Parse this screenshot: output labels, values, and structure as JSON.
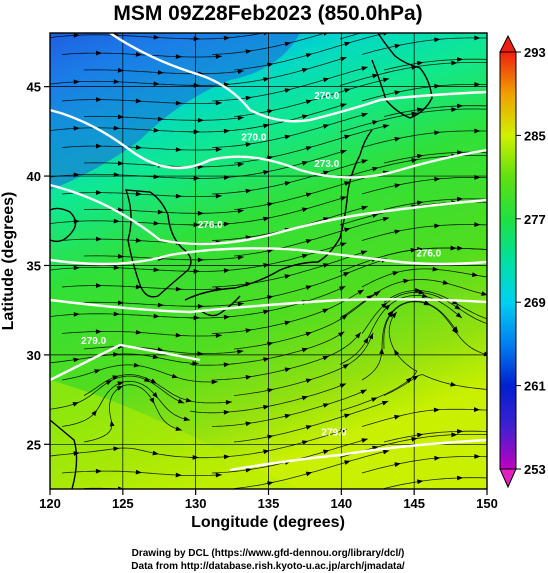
{
  "chart_data": {
    "type": "heatmap",
    "title": "MSM 09Z28Feb2023 (850.0hPa)",
    "xlabel": "Longitude (degrees)",
    "ylabel": "Latitude  (degrees)",
    "xlim": [
      120,
      150
    ],
    "ylim": [
      22.5,
      48
    ],
    "x_ticks": [
      "120",
      "125",
      "130",
      "135",
      "140",
      "145",
      "150"
    ],
    "y_ticks": [
      "25",
      "30",
      "35",
      "40",
      "45"
    ],
    "grid": true,
    "colorbar": {
      "position": "right",
      "range": [
        253,
        293
      ],
      "ticks": [
        "253",
        "261",
        "269",
        "277",
        "285",
        "293"
      ]
    },
    "field_samples": [
      {
        "lon": 122,
        "lat": 46,
        "value": 263
      },
      {
        "lon": 128,
        "lat": 46,
        "value": 266
      },
      {
        "lon": 135,
        "lat": 46,
        "value": 267
      },
      {
        "lon": 142,
        "lat": 46,
        "value": 269
      },
      {
        "lon": 148,
        "lat": 46,
        "value": 271
      },
      {
        "lon": 122,
        "lat": 41,
        "value": 270
      },
      {
        "lon": 130,
        "lat": 41,
        "value": 269
      },
      {
        "lon": 140,
        "lat": 41,
        "value": 273
      },
      {
        "lon": 148,
        "lat": 41,
        "value": 275
      },
      {
        "lon": 122,
        "lat": 36,
        "value": 277
      },
      {
        "lon": 130,
        "lat": 36,
        "value": 276
      },
      {
        "lon": 140,
        "lat": 36,
        "value": 277
      },
      {
        "lon": 148,
        "lat": 36,
        "value": 277
      },
      {
        "lon": 122,
        "lat": 31,
        "value": 279
      },
      {
        "lon": 130,
        "lat": 31,
        "value": 279
      },
      {
        "lon": 140,
        "lat": 31,
        "value": 278
      },
      {
        "lon": 145,
        "lat": 33,
        "value": 275
      },
      {
        "lon": 122,
        "lat": 25,
        "value": 283
      },
      {
        "lon": 128,
        "lat": 25,
        "value": 282
      },
      {
        "lon": 138,
        "lat": 25,
        "value": 280
      },
      {
        "lon": 148,
        "lat": 25,
        "value": 280
      }
    ],
    "contour_labels": [
      {
        "text": "270.0",
        "lon": 134,
        "lat": 42
      },
      {
        "text": "270.0",
        "lon": 139,
        "lat": 44.3
      },
      {
        "text": "273.0",
        "lon": 139,
        "lat": 40.5
      },
      {
        "text": "276.0",
        "lon": 131,
        "lat": 37.1
      },
      {
        "text": "276.0",
        "lon": 146,
        "lat": 35.5
      },
      {
        "text": "279.0",
        "lon": 123,
        "lat": 30.6
      },
      {
        "text": "279.0",
        "lon": 139.5,
        "lat": 25.5
      }
    ],
    "credits": [
      "Drawing by DCL (https://www.gfd-dennou.org/library/dcl/)",
      "Data from http://database.rish.kyoto-u.ac.jp/arch/jmadata/"
    ]
  }
}
